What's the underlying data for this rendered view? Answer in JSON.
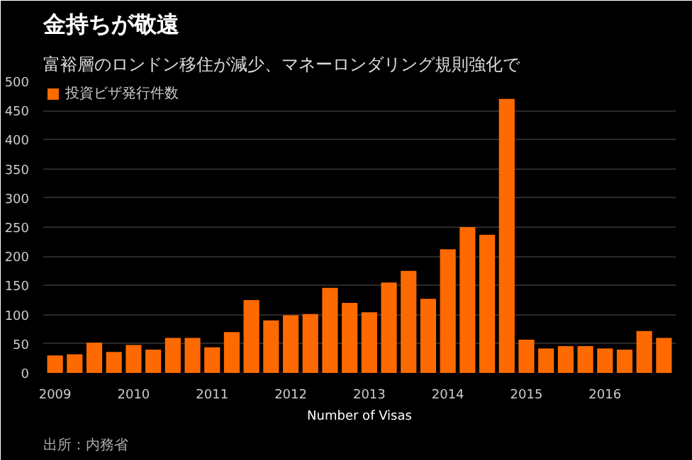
{
  "chart_data": {
    "type": "bar",
    "title": "金持ちが敬遠",
    "subtitle": "富裕層のロンドン移住が減少、マネーロンダリング規則強化で",
    "xlabel": "Number of Visas",
    "categories": [
      "2009",
      null,
      null,
      null,
      "2010",
      null,
      null,
      null,
      "2011",
      null,
      null,
      null,
      "2012",
      null,
      null,
      null,
      "2013",
      null,
      null,
      null,
      "2014",
      null,
      null,
      null,
      "2015",
      null,
      null,
      null,
      "2016",
      null,
      null,
      null
    ],
    "series": [
      {
        "name": "投資ビザ発行件数",
        "color": "#ff6a00",
        "values": [
          30,
          32,
          52,
          36,
          48,
          40,
          60,
          60,
          44,
          70,
          125,
          90,
          99,
          101,
          146,
          120,
          104,
          155,
          175,
          127,
          212,
          250,
          237,
          470,
          57,
          42,
          46,
          46,
          42,
          40,
          72,
          60
        ]
      }
    ],
    "ylim": [
      0,
      500
    ],
    "yticks": [
      0,
      50,
      100,
      150,
      200,
      250,
      300,
      350,
      400,
      450,
      500
    ],
    "grid": "y",
    "legend": "top left",
    "annotations": [
      "出所：内務省"
    ]
  }
}
